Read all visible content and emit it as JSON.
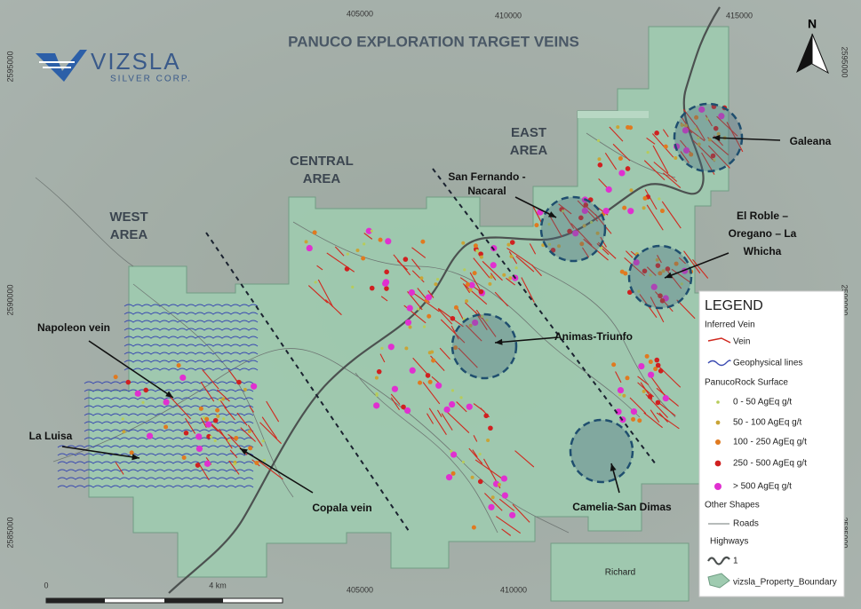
{
  "title": "PANUCO EXPLORATION TARGET VEINS",
  "logo": {
    "name": "VIZSLA",
    "sub": "SILVER CORP."
  },
  "north": "N",
  "areas": [
    {
      "lines": [
        "WEST",
        "AREA"
      ]
    },
    {
      "lines": [
        "CENTRAL",
        "AREA"
      ]
    },
    {
      "lines": [
        "EAST",
        "AREA"
      ]
    }
  ],
  "targets": [
    {
      "lines": [
        "Galeana"
      ]
    },
    {
      "lines": [
        "San Fernando -",
        "Nacaral"
      ]
    },
    {
      "lines": [
        "El Roble –",
        "Oregano – La",
        "Whicha"
      ]
    },
    {
      "lines": [
        "Animas-Triunfo"
      ]
    },
    {
      "lines": [
        "Camelia-San Dimas"
      ]
    },
    {
      "lines": [
        "Napoleon vein"
      ]
    },
    {
      "lines": [
        "La Luisa"
      ]
    },
    {
      "lines": [
        "Copala vein"
      ]
    }
  ],
  "grid_labels": {
    "easting": [
      "405000",
      "410000",
      "415000"
    ],
    "northing": [
      "2595000",
      "2590000",
      "2585000"
    ]
  },
  "scale": [
    "0",
    "4 km"
  ],
  "places": [
    "Richard"
  ],
  "legend": {
    "title": "LEGEND",
    "groups": [
      {
        "heading": "Inferred Vein",
        "items": [
          "Vein",
          "Geophysical lines"
        ]
      },
      {
        "heading": "PanucoRock Surface",
        "items": [
          "0 - 50 AgEq g/t",
          "50 - 100 AgEq g/t",
          "100 - 250 AgEq g/t",
          "250 - 500 AgEq g/t",
          "> 500 AgEq g/t"
        ]
      },
      {
        "heading": "Other Shapes",
        "items": [
          "Roads"
        ]
      },
      {
        "heading": "Highways",
        "items": [
          "1"
        ]
      },
      {
        "heading": null,
        "items": [
          "vizsla_Property_Boundary"
        ]
      }
    ]
  }
}
